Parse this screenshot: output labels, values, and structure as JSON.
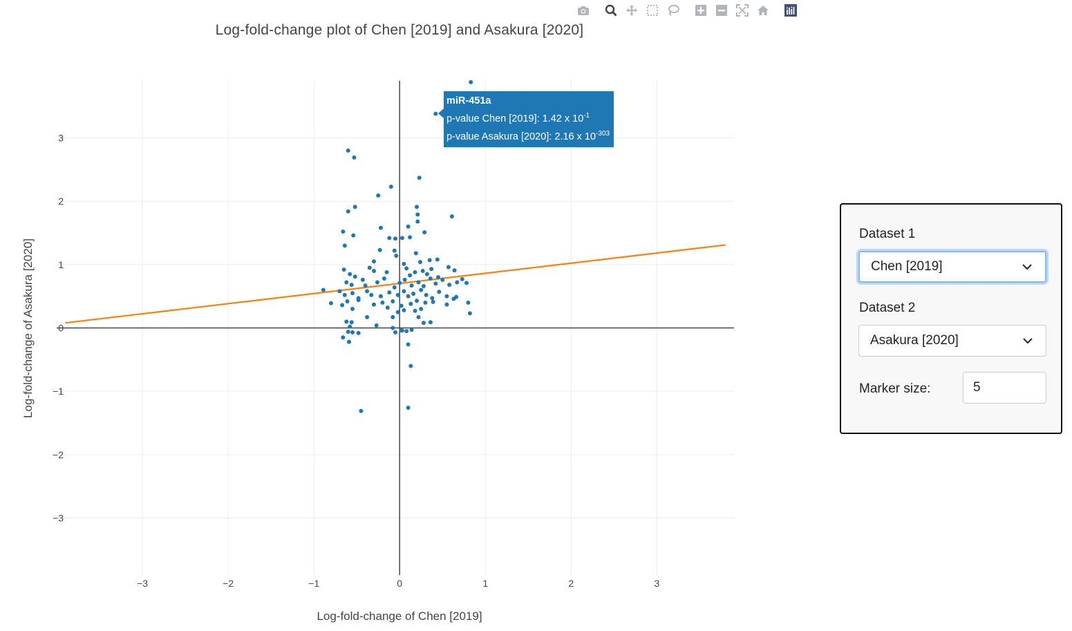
{
  "chart_data": {
    "type": "scatter",
    "title": "Log-fold-change plot of Chen [2019] and Asakura [2020]",
    "xlabel": "Log-fold-change of Chen [2019]",
    "ylabel": "Log-fold-change of Asakura [2020]",
    "xlim": [
      -4.0,
      3.9
    ],
    "ylim": [
      -3.9,
      3.9
    ],
    "x_ticks": [
      -3,
      -2,
      -1,
      0,
      1,
      2,
      3
    ],
    "y_ticks": [
      -3,
      -2,
      -1,
      0,
      1,
      2,
      3
    ],
    "x_tick_labels": [
      "−3",
      "−2",
      "−1",
      "0",
      "1",
      "2",
      "3"
    ],
    "y_tick_labels": [
      "−3",
      "−2",
      "−1",
      "0",
      "1",
      "2",
      "3"
    ],
    "grid": true,
    "marker_color": "#1f77b4",
    "fit_line_color": "#ff7f0e",
    "fit_line": {
      "x": [
        -3.9,
        3.8
      ],
      "y": [
        0.08,
        1.31
      ]
    },
    "points": [
      [
        0.83,
        3.88
      ],
      [
        0.42,
        3.38
      ],
      [
        -0.6,
        2.8
      ],
      [
        -0.53,
        2.69
      ],
      [
        -0.1,
        2.23
      ],
      [
        0.23,
        2.37
      ],
      [
        -0.25,
        2.09
      ],
      [
        -0.52,
        1.91
      ],
      [
        -0.6,
        1.84
      ],
      [
        0.2,
        1.91
      ],
      [
        0.21,
        1.79
      ],
      [
        0.61,
        1.76
      ],
      [
        0.21,
        1.68
      ],
      [
        -0.22,
        1.58
      ],
      [
        0.1,
        1.6
      ],
      [
        -0.66,
        1.52
      ],
      [
        -0.54,
        1.46
      ],
      [
        -0.12,
        1.42
      ],
      [
        -0.05,
        1.41
      ],
      [
        0.29,
        1.51
      ],
      [
        0.12,
        1.43
      ],
      [
        0.03,
        1.42
      ],
      [
        -0.64,
        1.3
      ],
      [
        -0.06,
        1.22
      ],
      [
        -0.23,
        1.23
      ],
      [
        -0.04,
        1.14
      ],
      [
        0.19,
        1.18
      ],
      [
        0.35,
        1.07
      ],
      [
        0.44,
        1.08
      ],
      [
        -0.3,
        1.05
      ],
      [
        0.05,
        1.01
      ],
      [
        0.24,
        1.04
      ],
      [
        -0.65,
        0.92
      ],
      [
        -0.58,
        0.85
      ],
      [
        -0.52,
        0.81
      ],
      [
        -0.35,
        0.95
      ],
      [
        -0.3,
        0.9
      ],
      [
        -0.15,
        0.88
      ],
      [
        0.08,
        0.94
      ],
      [
        0.12,
        0.83
      ],
      [
        0.18,
        0.88
      ],
      [
        0.27,
        0.9
      ],
      [
        0.32,
        0.85
      ],
      [
        0.37,
        0.93
      ],
      [
        0.45,
        0.8
      ],
      [
        0.57,
        0.96
      ],
      [
        0.64,
        0.91
      ],
      [
        0.73,
        0.77
      ],
      [
        0.78,
        0.71
      ],
      [
        -0.62,
        0.72
      ],
      [
        -0.56,
        0.68
      ],
      [
        -0.43,
        0.76
      ],
      [
        -0.4,
        0.67
      ],
      [
        -0.26,
        0.72
      ],
      [
        -0.18,
        0.78
      ],
      [
        -0.06,
        0.64
      ],
      [
        0.0,
        0.71
      ],
      [
        0.06,
        0.76
      ],
      [
        0.14,
        0.67
      ],
      [
        0.22,
        0.72
      ],
      [
        0.28,
        0.66
      ],
      [
        0.36,
        0.78
      ],
      [
        0.42,
        0.7
      ],
      [
        0.5,
        0.76
      ],
      [
        0.58,
        0.68
      ],
      [
        0.67,
        0.72
      ],
      [
        -0.89,
        0.6
      ],
      [
        -0.7,
        0.58
      ],
      [
        -0.64,
        0.52
      ],
      [
        -0.55,
        0.55
      ],
      [
        -0.48,
        0.47
      ],
      [
        -0.38,
        0.58
      ],
      [
        -0.33,
        0.52
      ],
      [
        -0.22,
        0.5
      ],
      [
        -0.12,
        0.56
      ],
      [
        -0.02,
        0.52
      ],
      [
        0.05,
        0.58
      ],
      [
        0.1,
        0.5
      ],
      [
        0.16,
        0.54
      ],
      [
        0.25,
        0.6
      ],
      [
        0.31,
        0.52
      ],
      [
        0.38,
        0.47
      ],
      [
        0.46,
        0.57
      ],
      [
        0.55,
        0.5
      ],
      [
        0.63,
        0.46
      ],
      [
        0.66,
        0.49
      ],
      [
        -0.8,
        0.39
      ],
      [
        -0.67,
        0.36
      ],
      [
        -0.61,
        0.42
      ],
      [
        -0.48,
        0.44
      ],
      [
        -0.3,
        0.37
      ],
      [
        -0.2,
        0.4
      ],
      [
        -0.08,
        0.42
      ],
      [
        0.02,
        0.35
      ],
      [
        0.13,
        0.38
      ],
      [
        0.2,
        0.43
      ],
      [
        0.3,
        0.4
      ],
      [
        0.39,
        0.41
      ],
      [
        0.55,
        0.37
      ],
      [
        0.8,
        0.4
      ],
      [
        -0.55,
        0.3
      ],
      [
        -0.14,
        0.32
      ],
      [
        0.05,
        0.28
      ],
      [
        0.18,
        0.27
      ],
      [
        0.25,
        0.3
      ],
      [
        -0.02,
        0.25
      ],
      [
        0.82,
        0.23
      ],
      [
        -0.38,
        0.17
      ],
      [
        -0.08,
        0.17
      ],
      [
        0.22,
        0.17
      ],
      [
        -0.62,
        0.1
      ],
      [
        -0.56,
        0.09
      ],
      [
        0.28,
        0.08
      ],
      [
        0.36,
        0.09
      ],
      [
        -0.27,
        0.04
      ],
      [
        -0.58,
        0.02
      ],
      [
        -0.08,
        0.0
      ],
      [
        0.02,
        -0.04
      ],
      [
        -0.6,
        -0.06
      ],
      [
        -0.55,
        -0.07
      ],
      [
        -0.48,
        -0.08
      ],
      [
        -0.05,
        -0.07
      ],
      [
        0.03,
        -0.04
      ],
      [
        0.08,
        -0.05
      ],
      [
        0.14,
        -0.03
      ],
      [
        -0.66,
        -0.15
      ],
      [
        -0.59,
        -0.22
      ],
      [
        0.1,
        -0.26
      ],
      [
        0.13,
        -0.6
      ],
      [
        -0.45,
        -1.31
      ],
      [
        0.1,
        -1.26
      ]
    ]
  },
  "hover": {
    "name": "miR-451a",
    "line1_prefix": "p-value Chen [2019]: 1.42 x 10",
    "line1_exp": "-1",
    "line2_prefix": "p-value Asakura [2020]: 2.16 x 10",
    "line2_exp": "-303"
  },
  "modebar": {
    "icons": [
      "camera-icon",
      "zoom-icon",
      "pan-icon",
      "box-select-icon",
      "lasso-icon",
      "zoom-in-icon",
      "zoom-out-icon",
      "autoscale-icon",
      "home-icon",
      "plotly-logo-icon"
    ]
  },
  "controls": {
    "dataset1_label": "Dataset 1",
    "dataset1_value": "Chen [2019]",
    "dataset2_label": "Dataset 2",
    "dataset2_value": "Asakura [2020]",
    "marker_label": "Marker size:",
    "marker_value": "5"
  }
}
